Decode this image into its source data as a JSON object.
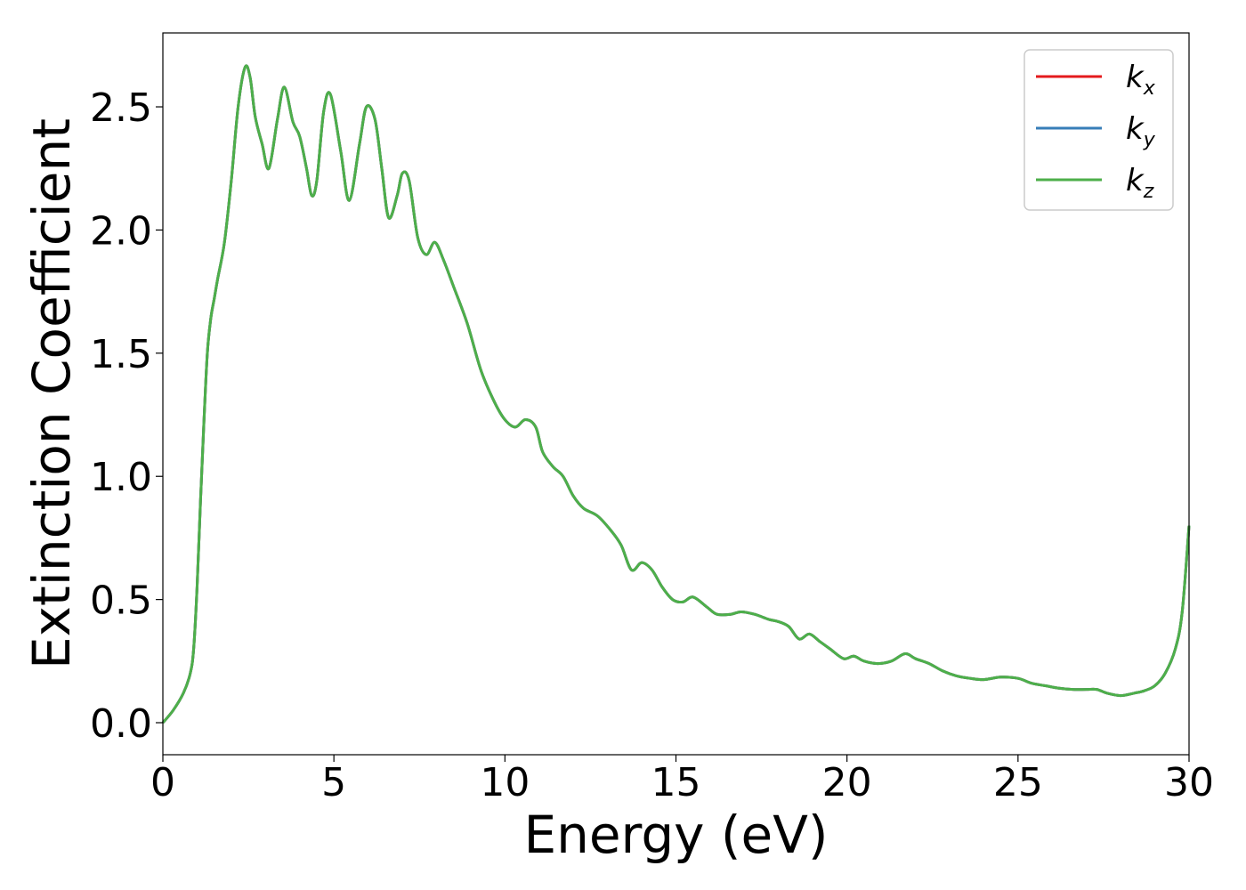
{
  "chart_data": {
    "type": "line",
    "xlabel": "Energy (eV)",
    "ylabel": "Extinction Coefficient",
    "xlim": [
      0,
      30
    ],
    "ylim": [
      -0.13,
      2.8
    ],
    "xticks": [
      "0",
      "5",
      "10",
      "15",
      "20",
      "25",
      "30"
    ],
    "yticks": [
      "0.0",
      "0.5",
      "1.0",
      "1.5",
      "2.0",
      "2.5"
    ],
    "grid": false,
    "legend_position": "top-right",
    "x": [
      0,
      0.3,
      0.6,
      0.8,
      0.9,
      1.0,
      1.1,
      1.2,
      1.3,
      1.4,
      1.5,
      1.6,
      1.8,
      2.0,
      2.2,
      2.4,
      2.55,
      2.7,
      2.9,
      3.1,
      3.35,
      3.55,
      3.8,
      4.0,
      4.2,
      4.35,
      4.5,
      4.7,
      4.9,
      5.2,
      5.45,
      5.75,
      5.95,
      6.2,
      6.4,
      6.6,
      6.85,
      7.0,
      7.2,
      7.45,
      7.7,
      7.95,
      8.2,
      8.5,
      8.9,
      9.3,
      9.7,
      10.0,
      10.3,
      10.6,
      10.9,
      11.1,
      11.4,
      11.7,
      12.0,
      12.3,
      12.7,
      13.1,
      13.4,
      13.7,
      14.0,
      14.3,
      14.6,
      14.9,
      15.2,
      15.5,
      15.9,
      16.2,
      16.6,
      16.9,
      17.3,
      17.7,
      18.0,
      18.3,
      18.6,
      18.9,
      19.2,
      19.5,
      19.9,
      20.2,
      20.5,
      20.9,
      21.3,
      21.7,
      22.0,
      22.4,
      22.8,
      23.2,
      23.6,
      24.0,
      24.5,
      25.0,
      25.4,
      25.8,
      26.2,
      26.6,
      27.0,
      27.3,
      27.6,
      28.0,
      28.4,
      28.7,
      29.0,
      29.3,
      29.6,
      29.8,
      30.0
    ],
    "series": [
      {
        "name": "k_x",
        "color": "#e41a1c",
        "values": [
          0.0,
          0.05,
          0.12,
          0.2,
          0.3,
          0.55,
          0.9,
          1.22,
          1.5,
          1.64,
          1.72,
          1.8,
          1.95,
          2.2,
          2.5,
          2.66,
          2.62,
          2.46,
          2.35,
          2.25,
          2.45,
          2.58,
          2.44,
          2.38,
          2.25,
          2.14,
          2.2,
          2.48,
          2.55,
          2.32,
          2.12,
          2.35,
          2.5,
          2.45,
          2.25,
          2.05,
          2.14,
          2.23,
          2.2,
          1.97,
          1.9,
          1.95,
          1.88,
          1.77,
          1.62,
          1.43,
          1.3,
          1.23,
          1.2,
          1.23,
          1.2,
          1.1,
          1.04,
          1.0,
          0.92,
          0.87,
          0.84,
          0.78,
          0.72,
          0.62,
          0.65,
          0.62,
          0.55,
          0.5,
          0.49,
          0.51,
          0.47,
          0.44,
          0.44,
          0.45,
          0.44,
          0.42,
          0.41,
          0.39,
          0.34,
          0.36,
          0.33,
          0.3,
          0.26,
          0.27,
          0.25,
          0.24,
          0.25,
          0.28,
          0.26,
          0.24,
          0.21,
          0.19,
          0.18,
          0.175,
          0.185,
          0.18,
          0.16,
          0.15,
          0.14,
          0.135,
          0.135,
          0.135,
          0.12,
          0.11,
          0.12,
          0.13,
          0.15,
          0.2,
          0.3,
          0.45,
          0.8
        ]
      },
      {
        "name": "k_y",
        "color": "#377eb8",
        "values": [
          0.0,
          0.05,
          0.12,
          0.2,
          0.3,
          0.55,
          0.9,
          1.22,
          1.5,
          1.64,
          1.72,
          1.8,
          1.95,
          2.2,
          2.5,
          2.66,
          2.62,
          2.46,
          2.35,
          2.25,
          2.45,
          2.58,
          2.44,
          2.38,
          2.25,
          2.14,
          2.2,
          2.48,
          2.55,
          2.32,
          2.12,
          2.35,
          2.5,
          2.45,
          2.25,
          2.05,
          2.14,
          2.23,
          2.2,
          1.97,
          1.9,
          1.95,
          1.88,
          1.77,
          1.62,
          1.43,
          1.3,
          1.23,
          1.2,
          1.23,
          1.2,
          1.1,
          1.04,
          1.0,
          0.92,
          0.87,
          0.84,
          0.78,
          0.72,
          0.62,
          0.65,
          0.62,
          0.55,
          0.5,
          0.49,
          0.51,
          0.47,
          0.44,
          0.44,
          0.45,
          0.44,
          0.42,
          0.41,
          0.39,
          0.34,
          0.36,
          0.33,
          0.3,
          0.26,
          0.27,
          0.25,
          0.24,
          0.25,
          0.28,
          0.26,
          0.24,
          0.21,
          0.19,
          0.18,
          0.175,
          0.185,
          0.18,
          0.16,
          0.15,
          0.14,
          0.135,
          0.135,
          0.135,
          0.12,
          0.11,
          0.12,
          0.13,
          0.15,
          0.2,
          0.3,
          0.45,
          0.8
        ]
      },
      {
        "name": "k_z",
        "color": "#4daf4a",
        "values": [
          0.0,
          0.05,
          0.12,
          0.2,
          0.3,
          0.55,
          0.9,
          1.22,
          1.5,
          1.64,
          1.72,
          1.8,
          1.95,
          2.2,
          2.5,
          2.66,
          2.62,
          2.46,
          2.35,
          2.25,
          2.45,
          2.58,
          2.44,
          2.38,
          2.25,
          2.14,
          2.2,
          2.48,
          2.55,
          2.32,
          2.12,
          2.35,
          2.5,
          2.45,
          2.25,
          2.05,
          2.14,
          2.23,
          2.2,
          1.97,
          1.9,
          1.95,
          1.88,
          1.77,
          1.62,
          1.43,
          1.3,
          1.23,
          1.2,
          1.23,
          1.2,
          1.1,
          1.04,
          1.0,
          0.92,
          0.87,
          0.84,
          0.78,
          0.72,
          0.62,
          0.65,
          0.62,
          0.55,
          0.5,
          0.49,
          0.51,
          0.47,
          0.44,
          0.44,
          0.45,
          0.44,
          0.42,
          0.41,
          0.39,
          0.34,
          0.36,
          0.33,
          0.3,
          0.26,
          0.27,
          0.25,
          0.24,
          0.25,
          0.28,
          0.26,
          0.24,
          0.21,
          0.19,
          0.18,
          0.175,
          0.185,
          0.18,
          0.16,
          0.15,
          0.14,
          0.135,
          0.135,
          0.135,
          0.12,
          0.11,
          0.12,
          0.13,
          0.15,
          0.2,
          0.3,
          0.45,
          0.8
        ]
      }
    ],
    "legend": [
      {
        "base": "k",
        "sub": "x",
        "color": "#e41a1c"
      },
      {
        "base": "k",
        "sub": "y",
        "color": "#377eb8"
      },
      {
        "base": "k",
        "sub": "z",
        "color": "#4daf4a"
      }
    ]
  }
}
